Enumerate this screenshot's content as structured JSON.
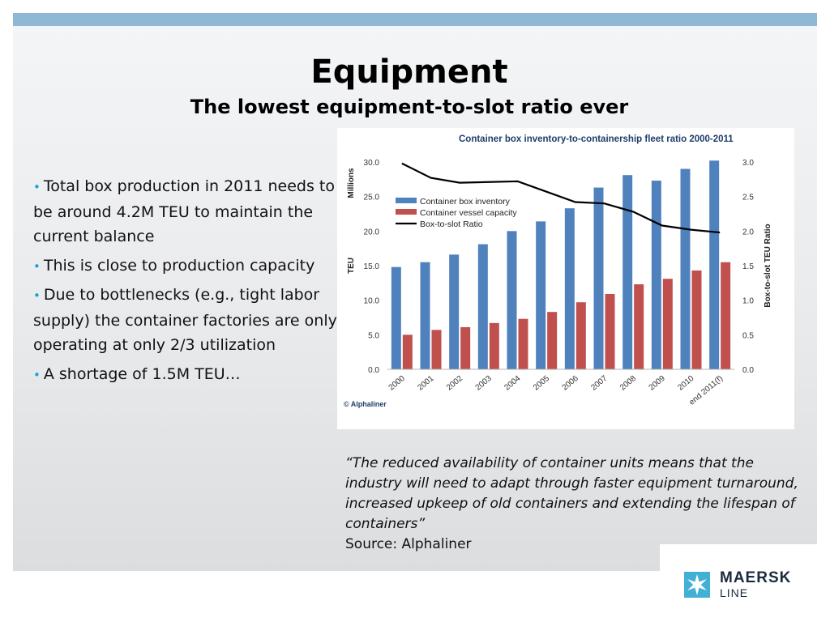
{
  "slide": {
    "title": "Equipment",
    "subtitle": "The lowest equipment-to-slot ratio ever",
    "bullets": [
      "Total box production in 2011 needs to be around 4.2M TEU to maintain the current balance",
      "This is close to production capacity",
      "Due to bottlenecks (e.g., tight labor supply) the container factories are only operating at only 2/3 utilization",
      "A shortage of 1.5M TEU…"
    ],
    "quote": "“The reduced availability of container units means that the industry will need to adapt through faster equipment turnaround, increased upkeep of old containers and extending the lifespan of containers”",
    "source": "Source: Alphaliner"
  },
  "logo": {
    "name": "MAERSK",
    "line": "LINE"
  },
  "chart_data": {
    "type": "bar",
    "title": "Container box inventory-to-containership fleet ratio 2000-2011",
    "categories": [
      "2000",
      "2001",
      "2002",
      "2003",
      "2004",
      "2005",
      "2006",
      "2007",
      "2008",
      "2009",
      "2010",
      "end 2011(f)"
    ],
    "series": [
      {
        "name": "Container box inventory",
        "type": "bar",
        "axis": "left",
        "values": [
          14.8,
          15.5,
          16.6,
          18.1,
          20.0,
          21.4,
          23.3,
          26.3,
          28.1,
          27.3,
          29.0,
          30.2
        ]
      },
      {
        "name": "Container vessel capacity",
        "type": "bar",
        "axis": "left",
        "values": [
          5.0,
          5.7,
          6.1,
          6.7,
          7.3,
          8.3,
          9.7,
          10.9,
          12.3,
          13.1,
          14.3,
          15.5
        ]
      },
      {
        "name": "Box-to-slot Ratio",
        "type": "line",
        "axis": "right",
        "values": [
          2.98,
          2.77,
          2.7,
          2.71,
          2.72,
          2.57,
          2.42,
          2.4,
          2.28,
          2.08,
          2.02,
          1.98
        ]
      }
    ],
    "ylabel": "TEU",
    "yunit": "Millions",
    "y2label": "Box-to-slot TEU Ratio",
    "ylim": [
      0,
      30
    ],
    "y2lim": [
      0,
      3
    ],
    "yticks": [
      "0.0",
      "5.0",
      "10.0",
      "15.0",
      "20.0",
      "25.0",
      "30.0"
    ],
    "y2ticks": [
      "0.0",
      "0.5",
      "1.0",
      "1.5",
      "2.0",
      "2.5",
      "3.0"
    ],
    "legend_position": "top-left",
    "grid": false,
    "credit": "© Alphaliner",
    "colors": {
      "inventory": "#4f81bd",
      "capacity": "#c0504d",
      "ratio": "#000000",
      "title": "#1f3d6b"
    }
  }
}
